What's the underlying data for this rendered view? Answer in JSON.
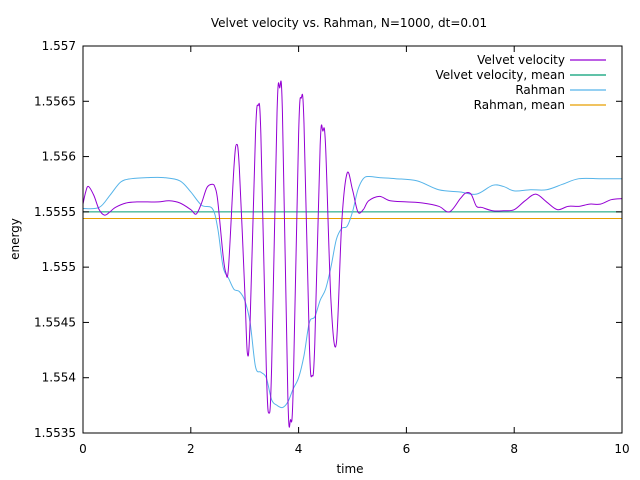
{
  "chart_data": {
    "type": "line",
    "title": "Velvet velocity vs. Rahman, N=1000, dt=0.01",
    "xlabel": "time",
    "ylabel": "energy",
    "xlim": [
      0,
      10
    ],
    "ylim": [
      1.5535,
      1.557
    ],
    "xticks": [
      0,
      2,
      4,
      6,
      8,
      10
    ],
    "xtick_labels": [
      "0",
      "2",
      "4",
      "6",
      "8",
      "10"
    ],
    "yticks": [
      1.5535,
      1.554,
      1.5545,
      1.555,
      1.5555,
      1.556,
      1.5565,
      1.557
    ],
    "ytick_labels": [
      "1.5535",
      "1.554",
      "1.5545",
      "1.555",
      "1.5555",
      "1.556",
      "1.5565",
      "1.557"
    ],
    "grid": false,
    "legend_position": "top-right",
    "series": [
      {
        "name": "Velvet velocity",
        "color": "#9400d3",
        "x": [
          0,
          0.05,
          0.1,
          0.2,
          0.3,
          0.4,
          0.5,
          0.6,
          0.8,
          1.0,
          1.2,
          1.4,
          1.6,
          1.8,
          2.0,
          2.1,
          2.2,
          2.3,
          2.4,
          2.45,
          2.5,
          2.6,
          2.65,
          2.7,
          2.8,
          2.85,
          2.9,
          3.0,
          3.05,
          3.1,
          3.2,
          3.25,
          3.3,
          3.4,
          3.45,
          3.5,
          3.6,
          3.65,
          3.7,
          3.8,
          3.85,
          3.9,
          4.0,
          4.05,
          4.1,
          4.2,
          4.25,
          4.3,
          4.4,
          4.45,
          4.5,
          4.6,
          4.7,
          4.8,
          4.9,
          5.0,
          5.1,
          5.2,
          5.3,
          5.5,
          5.7,
          6.0,
          6.3,
          6.6,
          6.8,
          7.0,
          7.1,
          7.2,
          7.3,
          7.4,
          7.6,
          7.8,
          8.0,
          8.2,
          8.4,
          8.6,
          8.8,
          9.0,
          9.2,
          9.4,
          9.6,
          9.8,
          10.0
        ],
        "y": [
          1.55557,
          1.55568,
          1.55573,
          1.55565,
          1.55552,
          1.55547,
          1.5555,
          1.55554,
          1.55558,
          1.55559,
          1.55559,
          1.55559,
          1.5556,
          1.55558,
          1.55552,
          1.55548,
          1.55558,
          1.55572,
          1.55575,
          1.55572,
          1.5556,
          1.5551,
          1.55495,
          1.555,
          1.5559,
          1.55611,
          1.5559,
          1.5548,
          1.55422,
          1.5545,
          1.5562,
          1.55646,
          1.5562,
          1.5541,
          1.55368,
          1.5541,
          1.5564,
          1.55662,
          1.5564,
          1.55384,
          1.55362,
          1.5539,
          1.5562,
          1.55653,
          1.5563,
          1.5543,
          1.55402,
          1.5543,
          1.5561,
          1.55623,
          1.5561,
          1.5547,
          1.55431,
          1.5554,
          1.55585,
          1.5557,
          1.5555,
          1.55552,
          1.5556,
          1.55564,
          1.5556,
          1.55559,
          1.55558,
          1.55555,
          1.5555,
          1.55562,
          1.55567,
          1.55566,
          1.55555,
          1.55554,
          1.55551,
          1.55551,
          1.55552,
          1.5556,
          1.55566,
          1.55559,
          1.55552,
          1.55555,
          1.55555,
          1.55557,
          1.55557,
          1.55561,
          1.55562
        ]
      },
      {
        "name": "Velvet velocity, mean",
        "color": "#009e73",
        "x": [
          0,
          10
        ],
        "y": [
          1.5555,
          1.5555
        ]
      },
      {
        "name": "Rahman",
        "color": "#56b4e9",
        "x": [
          0,
          0.3,
          0.5,
          0.7,
          0.9,
          1.2,
          1.5,
          1.8,
          2.0,
          2.2,
          2.4,
          2.5,
          2.6,
          2.7,
          2.8,
          2.9,
          3.0,
          3.1,
          3.2,
          3.3,
          3.4,
          3.5,
          3.6,
          3.7,
          3.8,
          3.9,
          4.0,
          4.1,
          4.2,
          4.3,
          4.4,
          4.5,
          4.6,
          4.7,
          4.8,
          4.9,
          5.0,
          5.1,
          5.2,
          5.3,
          5.5,
          5.8,
          6.2,
          6.6,
          7.0,
          7.3,
          7.6,
          7.8,
          8.0,
          8.3,
          8.6,
          8.9,
          9.2,
          9.6,
          10.0
        ],
        "y": [
          1.55553,
          1.55554,
          1.55565,
          1.55577,
          1.5558,
          1.55581,
          1.55581,
          1.55578,
          1.55568,
          1.55556,
          1.55553,
          1.55535,
          1.555,
          1.5549,
          1.5548,
          1.55478,
          1.5547,
          1.5545,
          1.5541,
          1.55405,
          1.554,
          1.5538,
          1.55375,
          1.55373,
          1.55378,
          1.5539,
          1.554,
          1.5542,
          1.5545,
          1.55455,
          1.5547,
          1.5548,
          1.555,
          1.55525,
          1.55535,
          1.55537,
          1.5555,
          1.5557,
          1.5558,
          1.55582,
          1.55581,
          1.5558,
          1.55578,
          1.5557,
          1.55568,
          1.55566,
          1.55574,
          1.55573,
          1.55569,
          1.5557,
          1.5557,
          1.55575,
          1.5558,
          1.5558,
          1.5558
        ]
      },
      {
        "name": "Rahman, mean",
        "color": "#e69f00",
        "x": [
          0,
          10
        ],
        "y": [
          1.55544,
          1.55544
        ]
      }
    ]
  }
}
